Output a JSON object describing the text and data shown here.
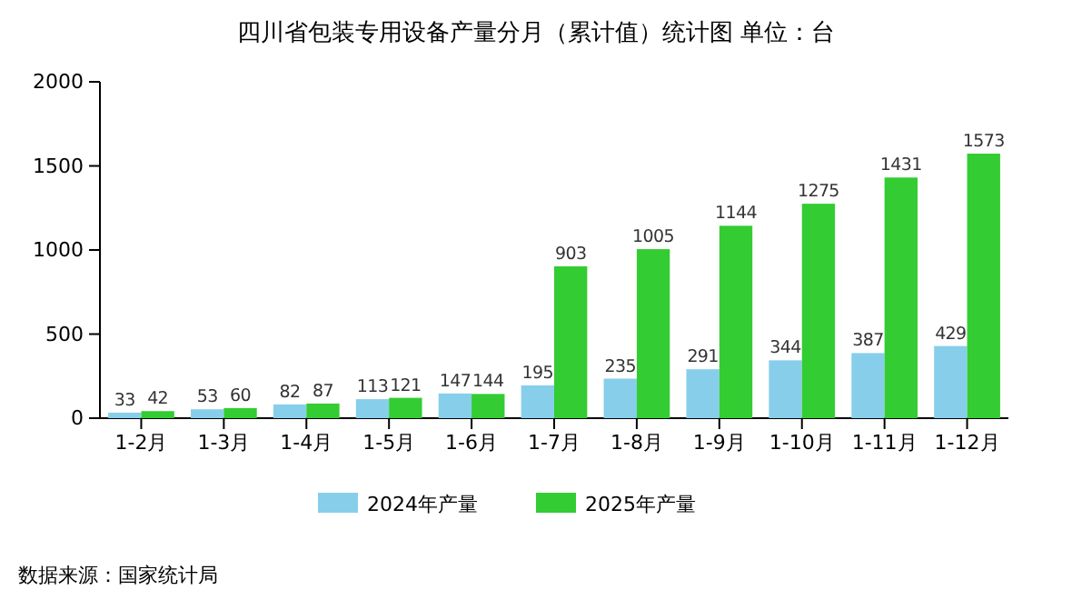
{
  "chart_data": {
    "type": "bar",
    "title": "四川省包装专用设备产量分月（累计值）统计图 单位：台",
    "categories": [
      "1-2月",
      "1-3月",
      "1-4月",
      "1-5月",
      "1-6月",
      "1-7月",
      "1-8月",
      "1-9月",
      "1-10月",
      "1-11月",
      "1-12月"
    ],
    "series": [
      {
        "name": "2024年产量",
        "color": "#87ceeb",
        "values": [
          33,
          53,
          82,
          113,
          147,
          195,
          235,
          291,
          344,
          387,
          429
        ]
      },
      {
        "name": "2025年产量",
        "color": "#33cc33",
        "values": [
          42,
          60,
          87,
          121,
          144,
          903,
          1005,
          1144,
          1275,
          1431,
          1573
        ]
      }
    ],
    "ylim": [
      0,
      2000
    ],
    "yticks": [
      0,
      500,
      1000,
      1500,
      2000
    ],
    "grid": false,
    "legend": "bottom",
    "data_labels": true,
    "annotations": [
      "数据来源：国家统计局"
    ]
  }
}
